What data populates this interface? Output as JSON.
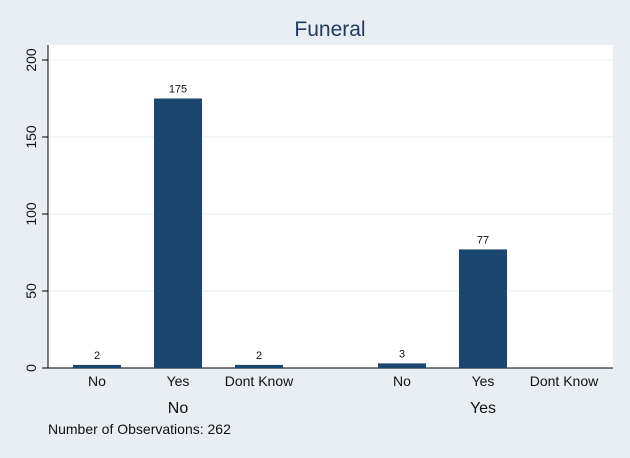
{
  "chart_data": {
    "type": "bar",
    "title": "Funeral",
    "ylim": [
      0,
      200
    ],
    "yticks": [
      0,
      50,
      100,
      150,
      200
    ],
    "grid": true,
    "groups": [
      {
        "label": "No",
        "categories": [
          "No",
          "Yes",
          "Dont Know"
        ],
        "values": [
          2,
          175,
          2
        ],
        "value_labels": [
          "2",
          "175",
          "2"
        ]
      },
      {
        "label": "Yes",
        "categories": [
          "No",
          "Yes",
          "Dont Know"
        ],
        "values": [
          3,
          77,
          0
        ],
        "value_labels": [
          "3",
          "77",
          ""
        ]
      }
    ],
    "bar_color": "#1a4670",
    "note": "Number of Observations: 262"
  }
}
